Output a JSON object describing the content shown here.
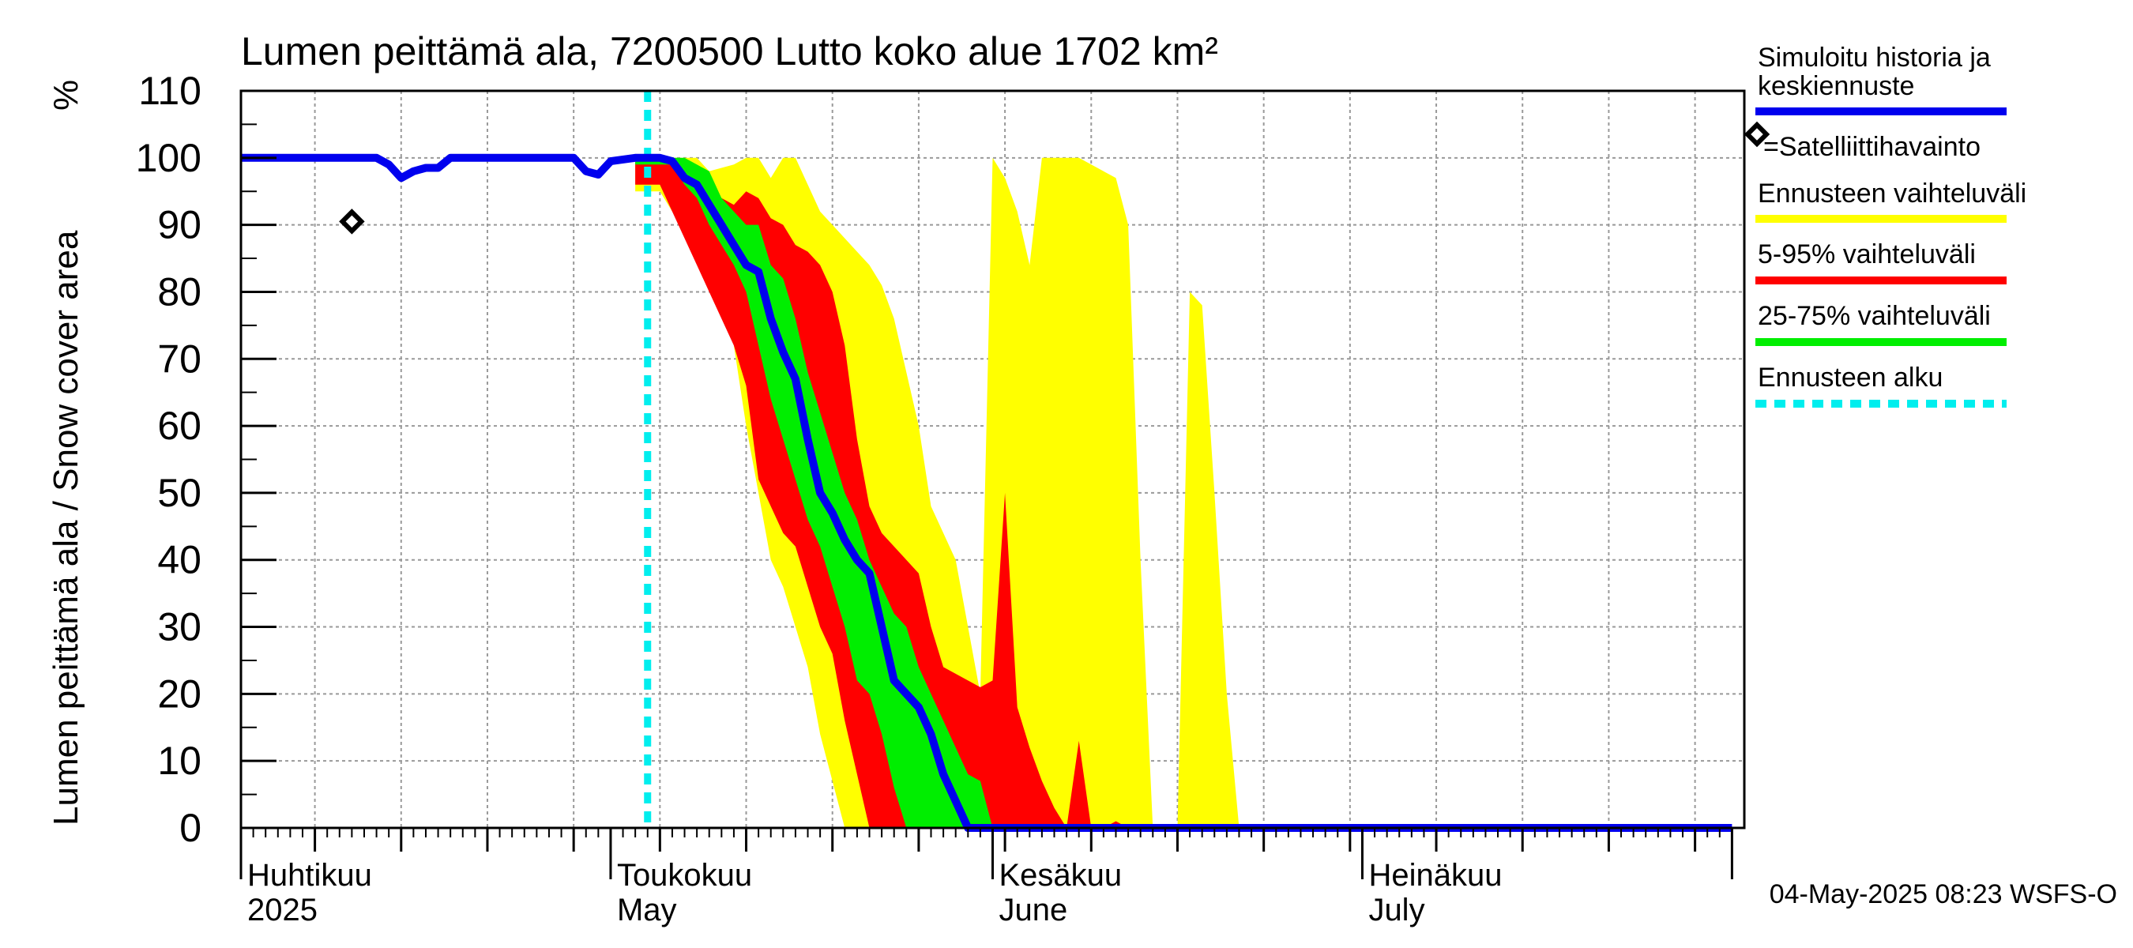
{
  "chart_data": {
    "type": "area",
    "title": "Lumen peittämä ala, 7200500 Lutto koko alue 1702 km²",
    "ylabel": "Lumen peittämä ala / Snow cover area",
    "yunit": "%",
    "ylim": [
      0,
      110
    ],
    "yticks": [
      0,
      10,
      20,
      30,
      40,
      50,
      60,
      70,
      80,
      90,
      100,
      110
    ],
    "xlim": [
      "2025-04-01",
      "2025-07-31"
    ],
    "grid": true,
    "month_labels": [
      {
        "date": "2025-04-01",
        "fi": "Huhtikuu",
        "en": "2025"
      },
      {
        "date": "2025-05-01",
        "fi": "Toukokuu",
        "en": "May"
      },
      {
        "date": "2025-06-01",
        "fi": "Kesäkuu",
        "en": "June"
      },
      {
        "date": "2025-07-01",
        "fi": "Heinäkuu",
        "en": "July"
      }
    ],
    "forecast_start": "2025-05-04",
    "satellite_observations": [
      {
        "date": "2025-04-10",
        "value": 90.5
      }
    ],
    "history_and_median": {
      "name": "Simuloitu historia ja keskiennuste",
      "color": "#0000ee",
      "points": [
        [
          "2025-04-01",
          100
        ],
        [
          "2025-04-12",
          100
        ],
        [
          "2025-04-13",
          99
        ],
        [
          "2025-04-14",
          97
        ],
        [
          "2025-04-15",
          98
        ],
        [
          "2025-04-16",
          98.5
        ],
        [
          "2025-04-17",
          98.5
        ],
        [
          "2025-04-18",
          100
        ],
        [
          "2025-04-28",
          100
        ],
        [
          "2025-04-29",
          98
        ],
        [
          "2025-04-30",
          97.5
        ],
        [
          "2025-05-01",
          99.5
        ],
        [
          "2025-05-03",
          100
        ],
        [
          "2025-05-05",
          100
        ],
        [
          "2025-05-06",
          99.5
        ],
        [
          "2025-05-07",
          97
        ],
        [
          "2025-05-08",
          96
        ],
        [
          "2025-05-09",
          93
        ],
        [
          "2025-05-10",
          90
        ],
        [
          "2025-05-11",
          87
        ],
        [
          "2025-05-12",
          84
        ],
        [
          "2025-05-13",
          83
        ],
        [
          "2025-05-14",
          76
        ],
        [
          "2025-05-15",
          71
        ],
        [
          "2025-05-16",
          67
        ],
        [
          "2025-05-17",
          58
        ],
        [
          "2025-05-18",
          50
        ],
        [
          "2025-05-19",
          47
        ],
        [
          "2025-05-20",
          43
        ],
        [
          "2025-05-21",
          40
        ],
        [
          "2025-05-22",
          38
        ],
        [
          "2025-05-23",
          30
        ],
        [
          "2025-05-24",
          22
        ],
        [
          "2025-05-25",
          20
        ],
        [
          "2025-05-26",
          18
        ],
        [
          "2025-05-27",
          14
        ],
        [
          "2025-05-28",
          8
        ],
        [
          "2025-05-29",
          4
        ],
        [
          "2025-05-30",
          0
        ],
        [
          "2025-07-31",
          0
        ]
      ]
    },
    "bands": [
      {
        "name": "Ennusteen vaihteluväli",
        "color": "#ffff00",
        "upper": [
          [
            "2025-05-03",
            100
          ],
          [
            "2025-05-08",
            100
          ],
          [
            "2025-05-09",
            98
          ],
          [
            "2025-05-10",
            98.5
          ],
          [
            "2025-05-11",
            99
          ],
          [
            "2025-05-12",
            100
          ],
          [
            "2025-05-13",
            100
          ],
          [
            "2025-05-14",
            97
          ],
          [
            "2025-05-15",
            100
          ],
          [
            "2025-05-16",
            100
          ],
          [
            "2025-05-17",
            96
          ],
          [
            "2025-05-18",
            92
          ],
          [
            "2025-05-19",
            90
          ],
          [
            "2025-05-20",
            88
          ],
          [
            "2025-05-21",
            86
          ],
          [
            "2025-05-22",
            84
          ],
          [
            "2025-05-23",
            81
          ],
          [
            "2025-05-24",
            76
          ],
          [
            "2025-05-25",
            68
          ],
          [
            "2025-05-26",
            60
          ],
          [
            "2025-05-27",
            48
          ],
          [
            "2025-05-28",
            44
          ],
          [
            "2025-05-29",
            40
          ],
          [
            "2025-05-30",
            30
          ],
          [
            "2025-05-31",
            20
          ],
          [
            "2025-06-01",
            100
          ],
          [
            "2025-06-02",
            97
          ],
          [
            "2025-06-03",
            92
          ],
          [
            "2025-06-04",
            84
          ],
          [
            "2025-06-05",
            100
          ],
          [
            "2025-06-06",
            100
          ],
          [
            "2025-06-08",
            100
          ],
          [
            "2025-06-09",
            99
          ],
          [
            "2025-06-10",
            98
          ],
          [
            "2025-06-11",
            97
          ],
          [
            "2025-06-12",
            90
          ],
          [
            "2025-06-13",
            40
          ],
          [
            "2025-06-14",
            0
          ],
          [
            "2025-06-15",
            0
          ],
          [
            "2025-06-16",
            0
          ],
          [
            "2025-06-17",
            80
          ],
          [
            "2025-06-18",
            78
          ],
          [
            "2025-06-19",
            50
          ],
          [
            "2025-06-20",
            20
          ],
          [
            "2025-06-21",
            0
          ]
        ],
        "lower": [
          [
            "2025-05-03",
            95
          ],
          [
            "2025-05-05",
            95
          ],
          [
            "2025-05-06",
            92
          ],
          [
            "2025-05-07",
            90
          ],
          [
            "2025-05-08",
            87
          ],
          [
            "2025-05-09",
            84
          ],
          [
            "2025-05-10",
            80
          ],
          [
            "2025-05-11",
            72
          ],
          [
            "2025-05-12",
            60
          ],
          [
            "2025-05-13",
            50
          ],
          [
            "2025-05-14",
            40
          ],
          [
            "2025-05-15",
            36
          ],
          [
            "2025-05-16",
            30
          ],
          [
            "2025-05-17",
            24
          ],
          [
            "2025-05-18",
            14
          ],
          [
            "2025-05-19",
            7
          ],
          [
            "2025-05-20",
            0
          ],
          [
            "2025-06-21",
            0
          ]
        ]
      },
      {
        "name": "5-95% vaihteluväli",
        "color": "#ff0000",
        "upper": [
          [
            "2025-05-03",
            100
          ],
          [
            "2025-05-06",
            100
          ],
          [
            "2025-05-07",
            99
          ],
          [
            "2025-05-08",
            97
          ],
          [
            "2025-05-09",
            96
          ],
          [
            "2025-05-10",
            94
          ],
          [
            "2025-05-11",
            93
          ],
          [
            "2025-05-12",
            95
          ],
          [
            "2025-05-13",
            94
          ],
          [
            "2025-05-14",
            91
          ],
          [
            "2025-05-15",
            90
          ],
          [
            "2025-05-16",
            87
          ],
          [
            "2025-05-17",
            86
          ],
          [
            "2025-05-18",
            84
          ],
          [
            "2025-05-19",
            80
          ],
          [
            "2025-05-20",
            72
          ],
          [
            "2025-05-21",
            58
          ],
          [
            "2025-05-22",
            48
          ],
          [
            "2025-05-23",
            44
          ],
          [
            "2025-05-24",
            42
          ],
          [
            "2025-05-25",
            40
          ],
          [
            "2025-05-26",
            38
          ],
          [
            "2025-05-27",
            30
          ],
          [
            "2025-05-28",
            24
          ],
          [
            "2025-05-29",
            23
          ],
          [
            "2025-05-30",
            22
          ],
          [
            "2025-05-31",
            21
          ],
          [
            "2025-06-01",
            22
          ],
          [
            "2025-06-02",
            50
          ],
          [
            "2025-06-03",
            18
          ],
          [
            "2025-06-04",
            12
          ],
          [
            "2025-06-05",
            7
          ],
          [
            "2025-06-06",
            3
          ],
          [
            "2025-06-07",
            0
          ],
          [
            "2025-06-08",
            13
          ],
          [
            "2025-06-09",
            0
          ],
          [
            "2025-06-10",
            0
          ],
          [
            "2025-06-11",
            1
          ],
          [
            "2025-06-12",
            0
          ]
        ],
        "lower": [
          [
            "2025-05-03",
            96
          ],
          [
            "2025-05-05",
            96
          ],
          [
            "2025-05-06",
            92
          ],
          [
            "2025-05-07",
            88
          ],
          [
            "2025-05-08",
            84
          ],
          [
            "2025-05-09",
            80
          ],
          [
            "2025-05-10",
            76
          ],
          [
            "2025-05-11",
            72
          ],
          [
            "2025-05-12",
            66
          ],
          [
            "2025-05-13",
            52
          ],
          [
            "2025-05-14",
            48
          ],
          [
            "2025-05-15",
            44
          ],
          [
            "2025-05-16",
            42
          ],
          [
            "2025-05-17",
            36
          ],
          [
            "2025-05-18",
            30
          ],
          [
            "2025-05-19",
            26
          ],
          [
            "2025-05-20",
            16
          ],
          [
            "2025-05-21",
            8
          ],
          [
            "2025-05-22",
            0
          ],
          [
            "2025-06-12",
            0
          ]
        ]
      },
      {
        "name": "25-75% vaihteluväli",
        "color": "#00ee00",
        "upper": [
          [
            "2025-05-03",
            100
          ],
          [
            "2025-05-07",
            100
          ],
          [
            "2025-05-08",
            99
          ],
          [
            "2025-05-09",
            98
          ],
          [
            "2025-05-10",
            94
          ],
          [
            "2025-05-11",
            92
          ],
          [
            "2025-05-12",
            90
          ],
          [
            "2025-05-13",
            90
          ],
          [
            "2025-05-14",
            84
          ],
          [
            "2025-05-15",
            82
          ],
          [
            "2025-05-16",
            76
          ],
          [
            "2025-05-17",
            68
          ],
          [
            "2025-05-18",
            62
          ],
          [
            "2025-05-19",
            56
          ],
          [
            "2025-05-20",
            50
          ],
          [
            "2025-05-21",
            46
          ],
          [
            "2025-05-22",
            40
          ],
          [
            "2025-05-23",
            36
          ],
          [
            "2025-05-24",
            32
          ],
          [
            "2025-05-25",
            30
          ],
          [
            "2025-05-26",
            24
          ],
          [
            "2025-05-27",
            20
          ],
          [
            "2025-05-28",
            16
          ],
          [
            "2025-05-29",
            12
          ],
          [
            "2025-05-30",
            8
          ],
          [
            "2025-05-31",
            7
          ],
          [
            "2025-06-01",
            0
          ]
        ],
        "lower": [
          [
            "2025-05-03",
            99
          ],
          [
            "2025-05-06",
            99
          ],
          [
            "2025-05-07",
            96
          ],
          [
            "2025-05-08",
            94
          ],
          [
            "2025-05-09",
            90
          ],
          [
            "2025-05-10",
            87
          ],
          [
            "2025-05-11",
            84
          ],
          [
            "2025-05-12",
            80
          ],
          [
            "2025-05-13",
            72
          ],
          [
            "2025-05-14",
            64
          ],
          [
            "2025-05-15",
            58
          ],
          [
            "2025-05-16",
            52
          ],
          [
            "2025-05-17",
            46
          ],
          [
            "2025-05-18",
            42
          ],
          [
            "2025-05-19",
            36
          ],
          [
            "2025-05-20",
            30
          ],
          [
            "2025-05-21",
            22
          ],
          [
            "2025-05-22",
            20
          ],
          [
            "2025-05-23",
            14
          ],
          [
            "2025-05-24",
            6
          ],
          [
            "2025-05-25",
            0
          ],
          [
            "2025-06-01",
            0
          ]
        ]
      }
    ]
  },
  "legend": {
    "history": "Simuloitu historia ja keskiennuste",
    "satellite": "=Satelliittihavainto",
    "range_full": "Ennusteen vaihteluväli",
    "range_5_95": "5-95% vaihteluväli",
    "range_25_75": "25-75% vaihteluväli",
    "forecast_start": "Ennusteen alku"
  },
  "colors": {
    "history": "#0000ee",
    "range_full": "#ffff00",
    "range_5_95": "#ff0000",
    "range_25_75": "#00ee00",
    "forecast_start": "#00eeee"
  },
  "footer": "04-May-2025 08:23 WSFS-O"
}
